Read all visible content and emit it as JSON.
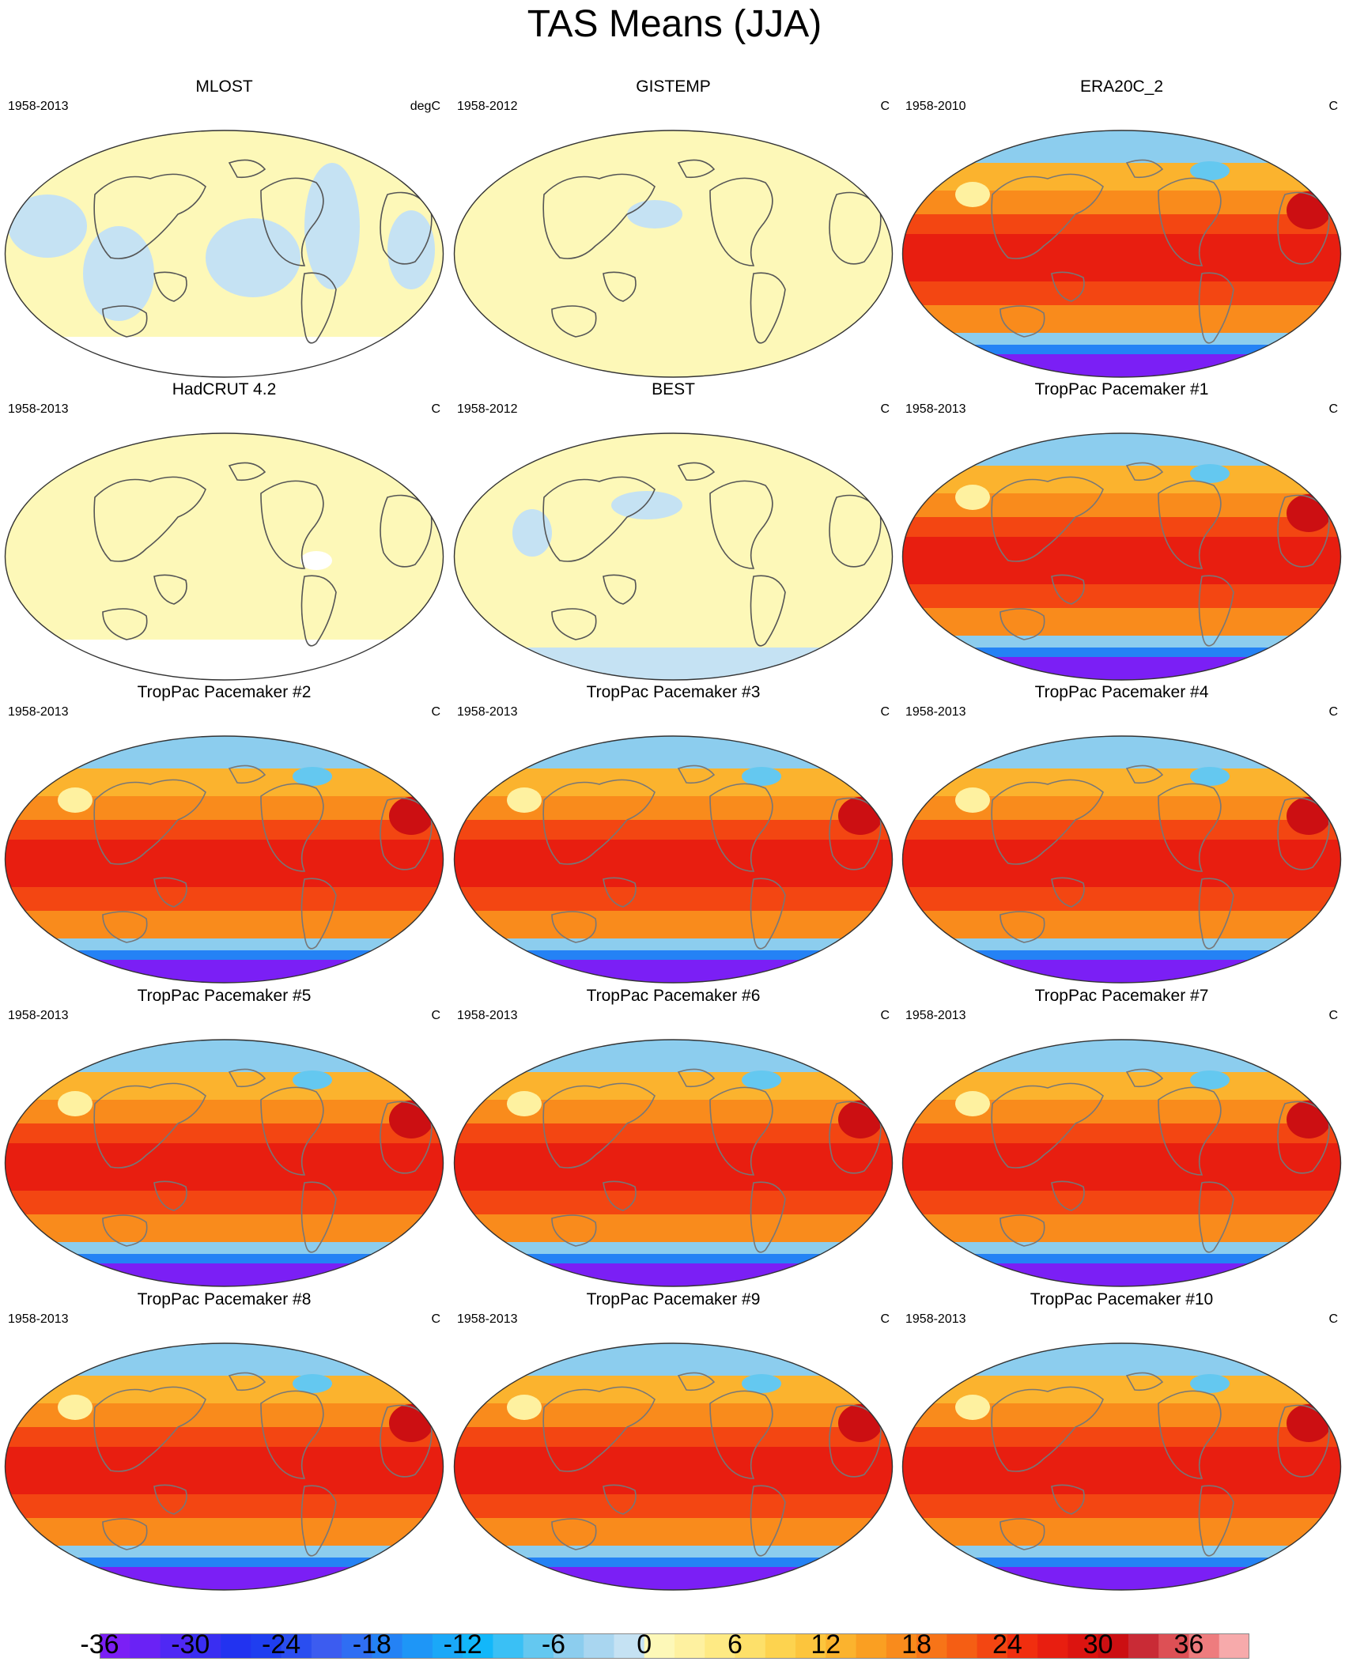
{
  "figure": {
    "title": "TAS Means (JJA)"
  },
  "panels": [
    {
      "title": "MLOST",
      "period": "1958-2013",
      "units": "degC",
      "style": "obs_a"
    },
    {
      "title": "GISTEMP",
      "period": "1958-2012",
      "units": "C",
      "style": "obs_b"
    },
    {
      "title": "ERA20C_2",
      "period": "1958-2010",
      "units": "C",
      "style": "model"
    },
    {
      "title": "HadCRUT 4.2",
      "period": "1958-2013",
      "units": "C",
      "style": "obs_c"
    },
    {
      "title": "BEST",
      "period": "1958-2012",
      "units": "C",
      "style": "obs_d"
    },
    {
      "title": "TropPac Pacemaker #1",
      "period": "1958-2013",
      "units": "C",
      "style": "model"
    },
    {
      "title": "TropPac Pacemaker #2",
      "period": "1958-2013",
      "units": "C",
      "style": "model"
    },
    {
      "title": "TropPac Pacemaker #3",
      "period": "1958-2013",
      "units": "C",
      "style": "model"
    },
    {
      "title": "TropPac Pacemaker #4",
      "period": "1958-2013",
      "units": "C",
      "style": "model"
    },
    {
      "title": "TropPac Pacemaker #5",
      "period": "1958-2013",
      "units": "C",
      "style": "model"
    },
    {
      "title": "TropPac Pacemaker #6",
      "period": "1958-2013",
      "units": "C",
      "style": "model"
    },
    {
      "title": "TropPac Pacemaker #7",
      "period": "1958-2013",
      "units": "C",
      "style": "model"
    },
    {
      "title": "TropPac Pacemaker #8",
      "period": "1958-2013",
      "units": "C",
      "style": "model"
    },
    {
      "title": "TropPac Pacemaker #9",
      "period": "1958-2013",
      "units": "C",
      "style": "model"
    },
    {
      "title": "TropPac Pacemaker #10",
      "period": "1958-2013",
      "units": "C",
      "style": "model"
    }
  ],
  "colorbar": {
    "labels": [
      "-36",
      "-30",
      "-24",
      "-18",
      "-12",
      "-6",
      "0",
      "6",
      "12",
      "18",
      "24",
      "30",
      "36"
    ],
    "colors": [
      "#7b1ff5",
      "#6a22f5",
      "#4f28f4",
      "#3a2ef2",
      "#2233f0",
      "#1f3ef0",
      "#2a4ef0",
      "#3c5cf0",
      "#2f6ef3",
      "#2482f5",
      "#1e96f7",
      "#1aa8f8",
      "#12b7fa",
      "#3ac0f5",
      "#64c8f0",
      "#8ccdee",
      "#a9d6f0",
      "#c5e2f3",
      "#fdf8b8",
      "#fef1a0",
      "#feea84",
      "#fde06a",
      "#fdd34f",
      "#fcc53d",
      "#fbb32e",
      "#fa9f22",
      "#f98b1c",
      "#f77418",
      "#f55e14",
      "#f34612",
      "#f12e0f",
      "#e81e10",
      "#dc1410",
      "#cc0f12",
      "#c92b36",
      "#dd5055",
      "#ee7c7e",
      "#f7aaab"
    ]
  }
}
